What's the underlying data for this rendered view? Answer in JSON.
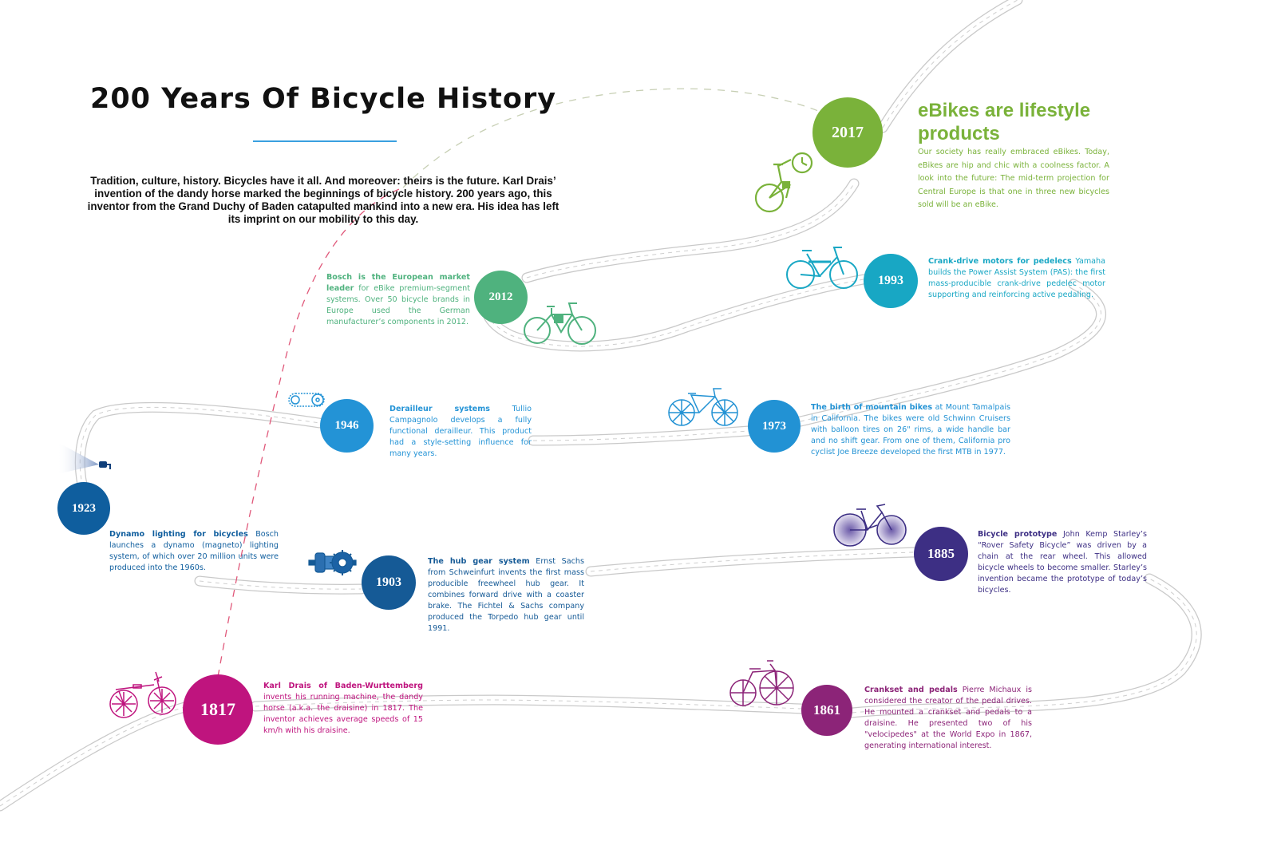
{
  "title": "200 Years Of Bicycle History",
  "intro": "Tradition, culture, history. Bicycles have it all. And moreover: theirs is the future. Karl Drais’ invention of the dandy horse marked the beginnings of bicycle history. 200 years ago, this inventor from the Grand Duchy of Baden catapulted mankind into a new era. His idea has left its imprint on our mobility to this day.",
  "colors": {
    "y1817": "#bf147e",
    "y1861": "#8c2478",
    "y1885": "#3d2f84",
    "y1903": "#155a96",
    "y1923": "#0f5e9e",
    "y1946": "#2393d6",
    "y1973": "#2292d4",
    "y1993": "#18a7c4",
    "y2012": "#4fb27e",
    "y2017": "#7ab23a",
    "title_rule": "#3aa0e0",
    "dashed_line_red": "#e0587a",
    "dashed_line_green": "#c9d8a8"
  },
  "milestones": [
    {
      "year": "1817",
      "icon": "dandy-horse-icon",
      "heading": "Karl Drais of Baden-Wurttemberg",
      "text": " invents his running machine, the dandy horse (a.k.a. the draisine) in 1817. The inventor achieves average speeds of 15 km/h with his draisine."
    },
    {
      "year": "1861",
      "icon": "velocipede-icon",
      "heading": "Crankset and pedals",
      "text": " Pierre Michaux is considered the creator of the pedal drives. He mounted a crankset and pedals to a draisine. He presented two of his \"velocipedes\" at the World Expo in 1867, generating international interest."
    },
    {
      "year": "1885",
      "icon": "safety-bicycle-icon",
      "heading": "Bicycle prototype",
      "text": " John Kemp Starley’s “Rover Safety Bicycle” was driven by a chain at the rear wheel. This allowed bicycle wheels to become smaller. Starley’s invention became the prototype of today’s bicycles."
    },
    {
      "year": "1903",
      "icon": "hub-gear-icon",
      "heading": "The hub gear system",
      "text": " Ernst Sachs from Schweinfurt invents the first mass producible freewheel hub gear. It combines forward drive with a coaster brake. The Fichtel & Sachs company produced the Torpedo hub gear until 1991."
    },
    {
      "year": "1923",
      "icon": "dynamo-lamp-icon",
      "heading": "Dynamo lighting for bicycles",
      "text": " Bosch launches a dynamo (magneto) lighting system, of which over 20 million units were produced into the 1960s."
    },
    {
      "year": "1946",
      "icon": "derailleur-icon",
      "heading": "Derailleur systems",
      "text": " Tullio Campagnolo develops a fully functional derailleur. This product had a style-setting influence for many years."
    },
    {
      "year": "1973",
      "icon": "mountain-bike-icon",
      "heading": "The birth of mountain bikes",
      "text": " at Mount Tamalpais in California. The bikes were old Schwinn Cruisers with balloon tires on 26\" rims, a wide handle bar and no shift gear. From one of them, California pro cyclist Joe Breeze developed the first MTB in 1977."
    },
    {
      "year": "1993",
      "icon": "pedelec-icon",
      "heading": "Crank-drive motors for pedelecs",
      "text": " Yamaha builds the Power Assist System (PAS): the first mass-producible crank-drive pedelec motor supporting and reinforcing active pedaling."
    },
    {
      "year": "2012",
      "icon": "ebike-icon",
      "heading": "Bosch is the European market leader",
      "text": " for eBike premium-segment systems. Over 50 bicycle brands in Europe used the German manufacturer’s components in 2012."
    },
    {
      "year": "2017",
      "icon": "lifestyle-ebike-icon",
      "heading": "eBikes are lifestyle products",
      "text": "Our society has really embraced eBikes. Today, eBikes are hip and chic with a coolness factor. A look into the future: The mid-term projection for Central Europe is that one in three new bicycles sold will be an eBike."
    }
  ]
}
